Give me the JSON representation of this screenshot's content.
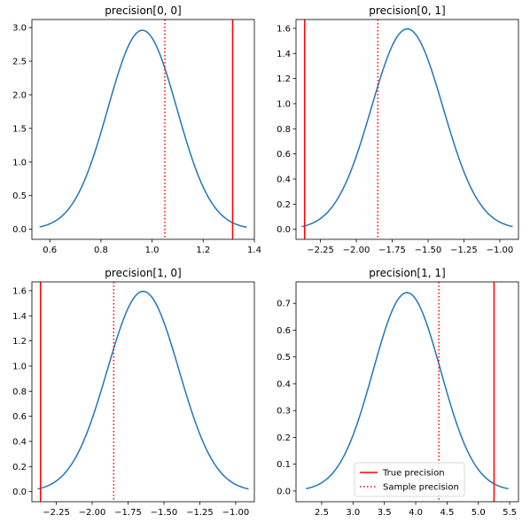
{
  "chart_data": [
    {
      "type": "line",
      "title": "precision[0, 0]",
      "xlim": [
        0.53,
        1.4
      ],
      "ylim": [
        -0.15,
        3.12
      ],
      "xticks": [
        0.6,
        0.8,
        1.0,
        1.2,
        1.4
      ],
      "xtick_labels": [
        "0.6",
        "0.8",
        "1.0",
        "1.2",
        "1.4"
      ],
      "yticks": [
        0.0,
        0.5,
        1.0,
        1.5,
        2.0,
        2.5,
        3.0
      ],
      "ytick_labels": [
        "0.0",
        "0.5",
        "1.0",
        "1.5",
        "2.0",
        "2.5",
        "3.0"
      ],
      "curve": {
        "x_min": 0.56,
        "x_max": 1.37,
        "mu": 0.962,
        "sigma": 0.135,
        "peak": 2.96
      },
      "true_value": 1.315,
      "sample_value": 1.05,
      "legend": false
    },
    {
      "type": "line",
      "title": "precision[0, 1]",
      "xlim": [
        -2.42,
        -0.87
      ],
      "ylim": [
        -0.08,
        1.67
      ],
      "xticks": [
        -2.25,
        -2.0,
        -1.75,
        -1.5,
        -1.25,
        -1.0
      ],
      "xtick_labels": [
        "−2.25",
        "−2.00",
        "−1.75",
        "−1.50",
        "−1.25",
        "−1.00"
      ],
      "yticks": [
        0.0,
        0.2,
        0.4,
        0.6,
        0.8,
        1.0,
        1.2,
        1.4,
        1.6
      ],
      "ytick_labels": [
        "0.0",
        "0.2",
        "0.4",
        "0.6",
        "0.8",
        "1.0",
        "1.2",
        "1.4",
        "1.6"
      ],
      "curve": {
        "x_min": -2.38,
        "x_max": -0.91,
        "mu": -1.645,
        "sigma": 0.25,
        "peak": 1.595
      },
      "true_value": -2.36,
      "sample_value": -1.85,
      "legend": false
    },
    {
      "type": "line",
      "title": "precision[1, 0]",
      "xlim": [
        -2.42,
        -0.87
      ],
      "ylim": [
        -0.08,
        1.67
      ],
      "xticks": [
        -2.25,
        -2.0,
        -1.75,
        -1.5,
        -1.25,
        -1.0
      ],
      "xtick_labels": [
        "−2.25",
        "−2.00",
        "−1.75",
        "−1.50",
        "−1.25",
        "−1.00"
      ],
      "yticks": [
        0.0,
        0.2,
        0.4,
        0.6,
        0.8,
        1.0,
        1.2,
        1.4,
        1.6
      ],
      "ytick_labels": [
        "0.0",
        "0.2",
        "0.4",
        "0.6",
        "0.8",
        "1.0",
        "1.2",
        "1.4",
        "1.6"
      ],
      "curve": {
        "x_min": -2.38,
        "x_max": -0.91,
        "mu": -1.645,
        "sigma": 0.25,
        "peak": 1.595
      },
      "true_value": -2.36,
      "sample_value": -1.85,
      "legend": false
    },
    {
      "type": "line",
      "title": "precision[1, 1]",
      "xlim": [
        2.09,
        5.64
      ],
      "ylim": [
        -0.04,
        0.78
      ],
      "xticks": [
        2.5,
        3.0,
        3.5,
        4.0,
        4.5,
        5.0,
        5.5
      ],
      "xtick_labels": [
        "2.5",
        "3.0",
        "3.5",
        "4.0",
        "4.5",
        "5.0",
        "5.5"
      ],
      "yticks": [
        0.0,
        0.1,
        0.2,
        0.3,
        0.4,
        0.5,
        0.6,
        0.7
      ],
      "ytick_labels": [
        "0.0",
        "0.1",
        "0.2",
        "0.3",
        "0.4",
        "0.5",
        "0.6",
        "0.7"
      ],
      "curve": {
        "x_min": 2.25,
        "x_max": 5.48,
        "mu": 3.86,
        "sigma": 0.54,
        "peak": 0.74
      },
      "true_value": 5.25,
      "sample_value": 4.37,
      "legend": true
    }
  ],
  "legend": {
    "entries": [
      {
        "label": "True precision",
        "style": "solid"
      },
      {
        "label": "Sample precision",
        "style": "dotted"
      }
    ]
  },
  "colors": {
    "curve": "#1f77b4",
    "true": "#ff0000",
    "sample": "#ff0000"
  }
}
